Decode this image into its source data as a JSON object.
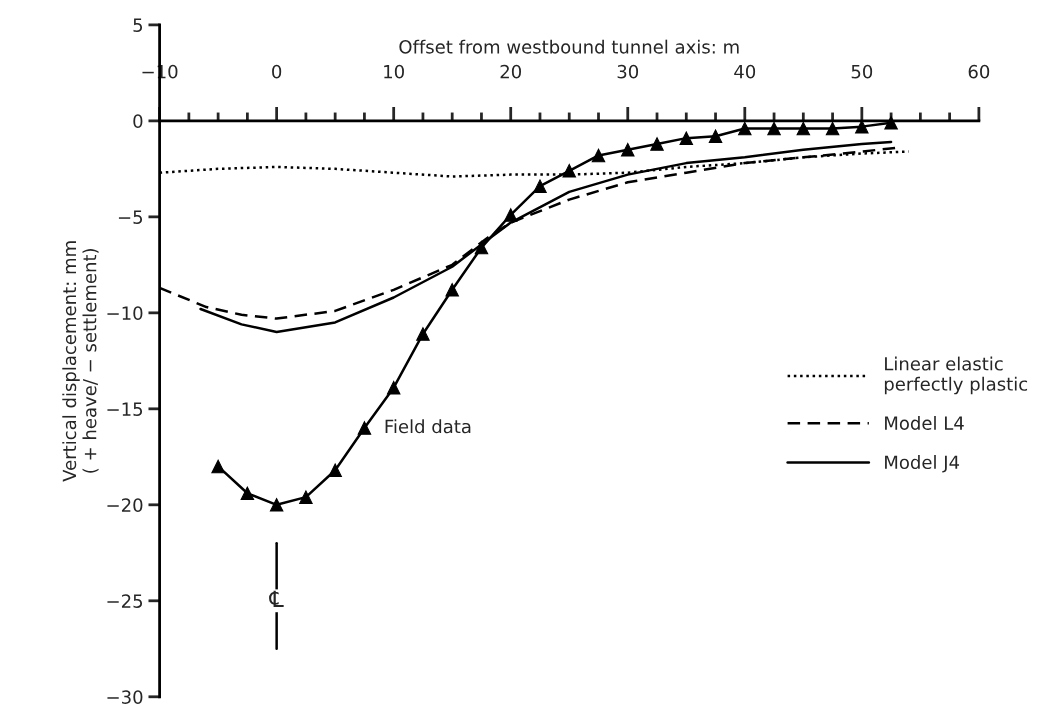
{
  "chart_data": {
    "type": "line",
    "xlabel": "Offset from westbound tunnel axis: m",
    "ylabel": "Vertical displacement: mm\n( + heave/ − settlement)",
    "xlim": [
      -10,
      60
    ],
    "ylim": [
      -30,
      5
    ],
    "xticks": [
      {
        "value": -10,
        "label": "−10"
      },
      0,
      10,
      20,
      30,
      40,
      50,
      60,
      {
        "value": -7.5,
        "label": null
      },
      {
        "value": -5,
        "label": null
      },
      {
        "value": -2.5,
        "label": null
      },
      {
        "value": 2.5,
        "label": null
      },
      {
        "value": 5,
        "label": null
      },
      {
        "value": 7.5,
        "label": null
      },
      {
        "value": 12.5,
        "label": null
      },
      {
        "value": 15,
        "label": null
      },
      {
        "value": 17.5,
        "label": null
      },
      {
        "value": 22.5,
        "label": null
      },
      {
        "value": 25,
        "label": null
      },
      {
        "value": 27.5,
        "label": null
      },
      {
        "value": 32.5,
        "label": null
      },
      {
        "value": 35,
        "label": null
      },
      {
        "value": 37.5,
        "label": null
      },
      {
        "value": 42.5,
        "label": null
      },
      {
        "value": 45,
        "label": null
      },
      {
        "value": 47.5,
        "label": null
      },
      {
        "value": 52.5,
        "label": null
      },
      {
        "value": 55,
        "label": null
      },
      {
        "value": 57.5,
        "label": null
      }
    ],
    "yticks": [
      5,
      0,
      {
        "value": -5,
        "label": "−5"
      },
      {
        "value": -10,
        "label": "−10"
      },
      {
        "value": -15,
        "label": "−15"
      },
      {
        "value": -20,
        "label": "−20"
      },
      {
        "value": -25,
        "label": "−25"
      },
      {
        "value": -30,
        "label": "−30"
      }
    ],
    "grid": false,
    "legend": "right",
    "series": [
      {
        "color": "#000000",
        "marker": "triangle",
        "line_style": "solid",
        "x": [
          -5,
          -2.5,
          0,
          2.5,
          5,
          7.5,
          10,
          12.5,
          15,
          17.5,
          20,
          22.5,
          25,
          27.5,
          30,
          32.5,
          35,
          37.5,
          40,
          42.5,
          45,
          47.5,
          50,
          52.5
        ],
        "values": [
          -18,
          -19.4,
          -20,
          -19.6,
          -18.2,
          -16,
          -13.9,
          -11.1,
          -8.8,
          -6.6,
          -4.9,
          -3.4,
          -2.6,
          -1.8,
          -1.5,
          -1.2,
          -0.9,
          -0.8,
          -0.4,
          -0.4,
          -0.4,
          -0.4,
          -0.3,
          -0.1
        ]
      },
      {
        "name": "Linear elastic\nperfectly plastic",
        "color": "#000000",
        "marker": "none",
        "line_style": "dotted",
        "x": [
          -10,
          -5,
          0,
          5,
          10,
          15,
          20,
          25,
          30,
          35,
          40,
          45,
          50,
          54
        ],
        "values": [
          -2.7,
          -2.5,
          -2.4,
          -2.5,
          -2.7,
          -2.9,
          -2.8,
          -2.8,
          -2.7,
          -2.4,
          -2.2,
          -1.9,
          -1.7,
          -1.6
        ]
      },
      {
        "name": "Model L4",
        "color": "#000000",
        "marker": "none",
        "line_style": "dashed",
        "x": [
          -10,
          -6,
          -3,
          0,
          5,
          10,
          15,
          18,
          20,
          25,
          30,
          35,
          40,
          45,
          50,
          53
        ],
        "values": [
          -8.7,
          -9.7,
          -10.1,
          -10.3,
          -9.9,
          -8.8,
          -7.5,
          -6.1,
          -5.3,
          -4.1,
          -3.2,
          -2.7,
          -2.2,
          -1.9,
          -1.6,
          -1.4
        ]
      },
      {
        "color": "#000000",
        "marker": "none",
        "line_style": "solid",
        "x": [
          0,
          0
        ],
        "values": [
          -22,
          -27.5
        ]
      },
      {
        "name": "Model J4",
        "color": "#000000",
        "marker": "none",
        "line_style": "solid",
        "x": [
          -6.5,
          -3,
          0,
          5,
          10,
          15,
          18,
          20,
          25,
          30,
          35,
          40,
          45,
          50,
          52.5
        ],
        "values": [
          -9.8,
          -10.6,
          -11.0,
          -10.5,
          -9.2,
          -7.6,
          -6.2,
          -5.3,
          -3.7,
          -2.8,
          -2.2,
          -1.9,
          -1.5,
          -1.2,
          -1.1
        ]
      }
    ],
    "annotations": [
      {
        "text": "Field data",
        "x": 7.5,
        "y": -16
      },
      {
        "text": "℄",
        "x": 0,
        "y": -25
      }
    ]
  }
}
